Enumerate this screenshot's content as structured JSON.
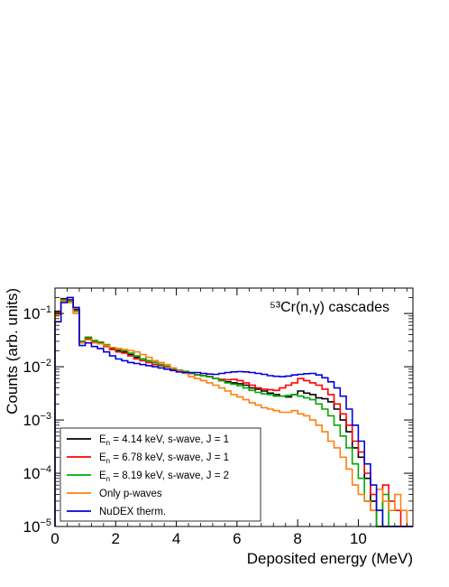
{
  "chart_data": {
    "type": "line",
    "subtype": "step-histogram",
    "title": "",
    "annotation": "⁵³Cr(n,γ) cascades",
    "annotation_position": "top-right",
    "xlabel": "Deposited energy (MeV)",
    "ylabel": "Counts (arb. units)",
    "xlim": [
      0,
      11.8
    ],
    "ylim": [
      1e-05,
      0.3
    ],
    "yscale": "log",
    "grid": false,
    "legend_position": "bottom-left",
    "x_ticks": [
      {
        "value": 0,
        "label": "0"
      },
      {
        "value": 2,
        "label": "2"
      },
      {
        "value": 4,
        "label": "4"
      },
      {
        "value": 6,
        "label": "6"
      },
      {
        "value": 8,
        "label": "8"
      },
      {
        "value": 10,
        "label": "10"
      }
    ],
    "y_ticks": [
      {
        "value": 0.1,
        "mantissa": "10",
        "exponent": "−1"
      },
      {
        "value": 0.01,
        "mantissa": "10",
        "exponent": "−2"
      },
      {
        "value": 0.001,
        "mantissa": "10",
        "exponent": "−3"
      },
      {
        "value": 0.0001,
        "mantissa": "10",
        "exponent": "−4"
      },
      {
        "value": 1e-05,
        "mantissa": "10",
        "exponent": "−5"
      }
    ],
    "bin_edges": [
      0,
      0.2,
      0.4,
      0.6,
      0.8,
      1.0,
      1.2,
      1.4,
      1.6,
      1.8,
      2.0,
      2.2,
      2.4,
      2.6,
      2.8,
      3.0,
      3.2,
      3.4,
      3.6,
      3.8,
      4.0,
      4.2,
      4.4,
      4.6,
      4.8,
      5.0,
      5.2,
      5.4,
      5.6,
      5.8,
      6.0,
      6.2,
      6.4,
      6.6,
      6.8,
      7.0,
      7.2,
      7.4,
      7.6,
      7.8,
      8.0,
      8.2,
      8.4,
      8.6,
      8.8,
      9.0,
      9.2,
      9.4,
      9.6,
      9.8,
      10.0,
      10.2,
      10.4,
      10.6,
      10.8,
      11.0,
      11.2,
      11.4,
      11.6,
      11.8
    ],
    "series": [
      {
        "name": "E_n = 4.14 keV, s-wave, J = 1",
        "label_prefix": "E",
        "label_sub": "n",
        "label_suffix": " = 4.14 keV, s-wave, J = 1",
        "color": "#000000",
        "values": [
          0.11,
          0.19,
          0.18,
          0.12,
          0.03,
          0.035,
          0.03,
          0.028,
          0.025,
          0.022,
          0.02,
          0.019,
          0.017,
          0.015,
          0.014,
          0.013,
          0.012,
          0.011,
          0.01,
          0.009,
          0.0085,
          0.008,
          0.0075,
          0.007,
          0.0068,
          0.0065,
          0.006,
          0.0055,
          0.0052,
          0.005,
          0.0048,
          0.0045,
          0.004,
          0.0038,
          0.0035,
          0.0032,
          0.003,
          0.0028,
          0.0027,
          0.003,
          0.0035,
          0.0032,
          0.003,
          0.0026,
          0.0025,
          0.0022,
          0.0016,
          0.001,
          0.0006,
          0.0003,
          0.0002,
          8e-05,
          3e-05,
          0,
          0,
          0,
          0,
          0,
          0
        ]
      },
      {
        "name": "E_n = 6.78 keV, s-wave, J = 1",
        "label_prefix": "E",
        "label_sub": "n",
        "label_suffix": " = 6.78 keV, s-wave, J = 1",
        "color": "#ff0000",
        "values": [
          0.105,
          0.185,
          0.175,
          0.115,
          0.029,
          0.034,
          0.03,
          0.027,
          0.024,
          0.021,
          0.019,
          0.018,
          0.016,
          0.014,
          0.013,
          0.012,
          0.011,
          0.0105,
          0.0098,
          0.009,
          0.0085,
          0.008,
          0.0075,
          0.007,
          0.0068,
          0.0065,
          0.006,
          0.0058,
          0.0057,
          0.0058,
          0.0055,
          0.005,
          0.0045,
          0.004,
          0.0038,
          0.0037,
          0.0036,
          0.004,
          0.0045,
          0.005,
          0.006,
          0.0055,
          0.005,
          0.0045,
          0.0038,
          0.003,
          0.002,
          0.0013,
          0.0008,
          0.0004,
          0.00025,
          0.0001,
          4e-05,
          2e-05,
          6e-05,
          3e-05,
          2e-05,
          0,
          0
        ]
      },
      {
        "name": "E_n = 8.19 keV, s-wave, J = 2",
        "label_prefix": "E",
        "label_sub": "n",
        "label_suffix": " = 8.19 keV, s-wave, J = 2",
        "color": "#00aa00",
        "values": [
          0.1,
          0.18,
          0.17,
          0.11,
          0.03,
          0.036,
          0.031,
          0.029,
          0.026,
          0.023,
          0.021,
          0.02,
          0.018,
          0.016,
          0.014,
          0.013,
          0.012,
          0.011,
          0.0102,
          0.0092,
          0.0087,
          0.0082,
          0.0076,
          0.0071,
          0.0068,
          0.0064,
          0.006,
          0.0055,
          0.005,
          0.0047,
          0.0044,
          0.004,
          0.0036,
          0.0033,
          0.0031,
          0.003,
          0.0028,
          0.0028,
          0.0029,
          0.003,
          0.0028,
          0.0026,
          0.0024,
          0.002,
          0.0016,
          0.0012,
          0.0008,
          0.0005,
          0.0003,
          0.00015,
          8e-05,
          3e-05,
          2e-05,
          1e-05,
          4e-05,
          0,
          0,
          0,
          0
        ]
      },
      {
        "name": "Only p-waves",
        "color": "#ff7f0e",
        "values": [
          0.095,
          0.17,
          0.16,
          0.1,
          0.028,
          0.032,
          0.028,
          0.027,
          0.025,
          0.023,
          0.022,
          0.021,
          0.02,
          0.019,
          0.017,
          0.015,
          0.013,
          0.012,
          0.011,
          0.0095,
          0.0085,
          0.0075,
          0.0065,
          0.006,
          0.0055,
          0.005,
          0.0045,
          0.004,
          0.0035,
          0.003,
          0.0027,
          0.0024,
          0.0021,
          0.0019,
          0.0017,
          0.0016,
          0.0015,
          0.0014,
          0.0014,
          0.0015,
          0.0013,
          0.0012,
          0.001,
          0.0008,
          0.0006,
          0.0004,
          0.0003,
          0.0002,
          0.00012,
          6e-05,
          4e-05,
          3e-05,
          2e-05,
          5e-05,
          3e-05,
          2e-05,
          4e-05,
          2e-05,
          0
        ]
      },
      {
        "name": "NuDEX therm.",
        "color": "#0000dd",
        "values": [
          0.07,
          0.16,
          0.2,
          0.13,
          0.025,
          0.028,
          0.024,
          0.022,
          0.019,
          0.016,
          0.014,
          0.013,
          0.012,
          0.0115,
          0.011,
          0.0105,
          0.01,
          0.0095,
          0.009,
          0.0085,
          0.008,
          0.0078,
          0.0078,
          0.0078,
          0.0075,
          0.0073,
          0.0072,
          0.0075,
          0.0078,
          0.008,
          0.0081,
          0.008,
          0.0078,
          0.0075,
          0.0072,
          0.0068,
          0.0066,
          0.0065,
          0.0067,
          0.007,
          0.0072,
          0.0074,
          0.0075,
          0.007,
          0.0062,
          0.0052,
          0.004,
          0.0028,
          0.0016,
          0.0008,
          0.0004,
          0.00015,
          6e-05,
          2e-05,
          1e-05,
          0,
          0,
          0,
          0
        ]
      }
    ]
  }
}
